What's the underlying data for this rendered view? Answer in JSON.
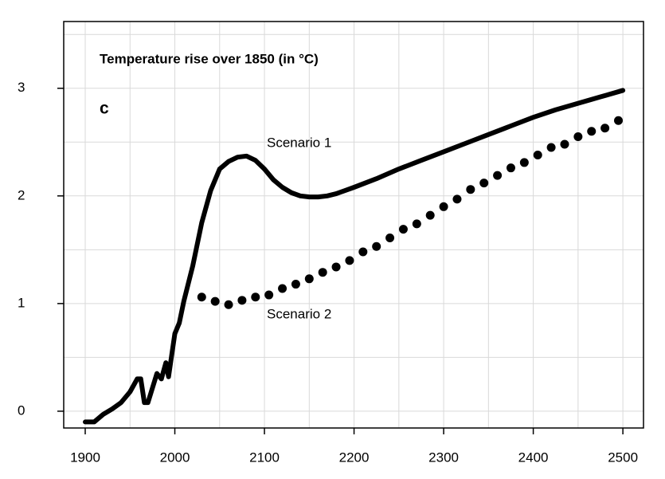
{
  "chart_data": {
    "type": "line",
    "annotations": [
      "Temperature rise over 1850 (in °C)",
      "c",
      "Scenario 1",
      "Scenario 2"
    ],
    "xlim": [
      1876,
      2523
    ],
    "ylim": [
      -0.156,
      3.62
    ],
    "xticks": [
      1900,
      2000,
      2100,
      2200,
      2300,
      2400,
      2500
    ],
    "yticks": [
      0,
      1,
      2,
      3
    ],
    "grid": true,
    "series": [
      {
        "name": "Scenario 1",
        "color": "#000000",
        "style": "line",
        "x": [
          1900,
          1910,
          1920,
          1930,
          1940,
          1950,
          1958,
          1962,
          1966,
          1970,
          1980,
          1985,
          1990,
          1993,
          2000,
          2005,
          2010,
          2020,
          2030,
          2040,
          2050,
          2060,
          2070,
          2080,
          2090,
          2100,
          2110,
          2120,
          2130,
          2140,
          2150,
          2160,
          2170,
          2180,
          2190,
          2200,
          2225,
          2250,
          2275,
          2300,
          2325,
          2350,
          2375,
          2400,
          2425,
          2450,
          2475,
          2500
        ],
        "values": [
          -0.1,
          -0.1,
          -0.03,
          0.02,
          0.08,
          0.18,
          0.3,
          0.3,
          0.08,
          0.08,
          0.35,
          0.3,
          0.45,
          0.32,
          0.72,
          0.82,
          1.02,
          1.35,
          1.75,
          2.05,
          2.25,
          2.32,
          2.36,
          2.37,
          2.33,
          2.25,
          2.15,
          2.08,
          2.03,
          2.0,
          1.99,
          1.99,
          2.0,
          2.02,
          2.05,
          2.08,
          2.16,
          2.25,
          2.33,
          2.41,
          2.49,
          2.57,
          2.65,
          2.73,
          2.8,
          2.86,
          2.92,
          2.98
        ]
      },
      {
        "name": "Scenario 2",
        "color": "#000000",
        "style": "dots",
        "x": [
          2030,
          2045,
          2060,
          2075,
          2090,
          2105,
          2120,
          2135,
          2150,
          2165,
          2180,
          2195,
          2210,
          2225,
          2240,
          2255,
          2270,
          2285,
          2300,
          2315,
          2330,
          2345,
          2360,
          2375,
          2390,
          2405,
          2420,
          2435,
          2450,
          2465,
          2480,
          2495
        ],
        "values": [
          1.06,
          1.02,
          0.99,
          1.03,
          1.06,
          1.08,
          1.14,
          1.18,
          1.23,
          1.29,
          1.34,
          1.4,
          1.48,
          1.53,
          1.61,
          1.69,
          1.74,
          1.82,
          1.9,
          1.97,
          2.06,
          2.12,
          2.19,
          2.26,
          2.31,
          2.38,
          2.45,
          2.48,
          2.55,
          2.6,
          2.63,
          2.7
        ]
      }
    ]
  }
}
